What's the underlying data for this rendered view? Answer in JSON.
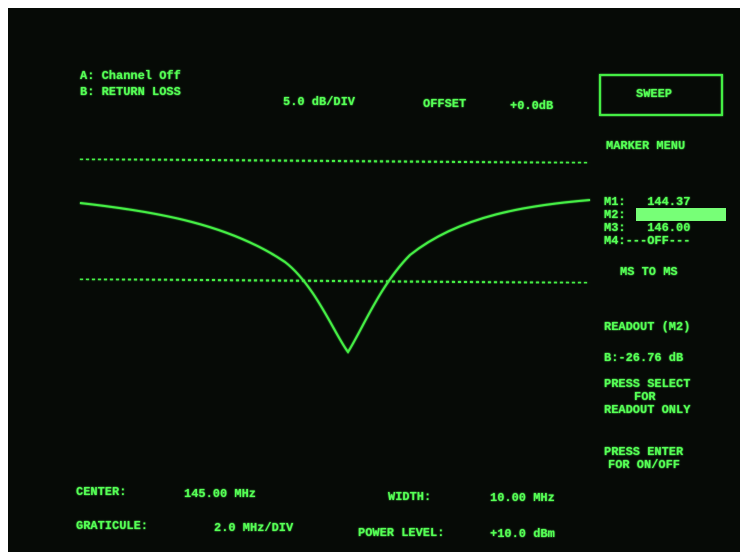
{
  "header": {
    "channel_a": "A: Channel Off",
    "channel_b": "B: RETURN LOSS",
    "scale": "5.0 dB/DIV",
    "offset_label": "OFFSET",
    "offset_value": "+0.0dB"
  },
  "menu": {
    "sweep": "SWEEP",
    "title": "MARKER MENU",
    "markers": [
      "M1:   144.37",
      "M2:",
      "M3:   146.00",
      "M4:---OFF---"
    ],
    "marker_action": "MS TO MS",
    "readout_title": "READOUT (M2)",
    "readout_value": "B:-26.76 dB",
    "select_help": [
      "PRESS SELECT",
      "FOR",
      "READOUT ONLY"
    ],
    "enter_help": [
      "PRESS ENTER",
      "FOR ON/OFF"
    ]
  },
  "footer": {
    "center_label": "CENTER:",
    "center_value": "145.00 MHz",
    "width_label": "WIDTH:",
    "width_value": "10.00 MHz",
    "graticule_label": "GRATICULE:",
    "graticule_value": "2.0 MHz/DIV",
    "power_label": "POWER LEVEL:",
    "power_value": "+10.0 dBm"
  }
}
